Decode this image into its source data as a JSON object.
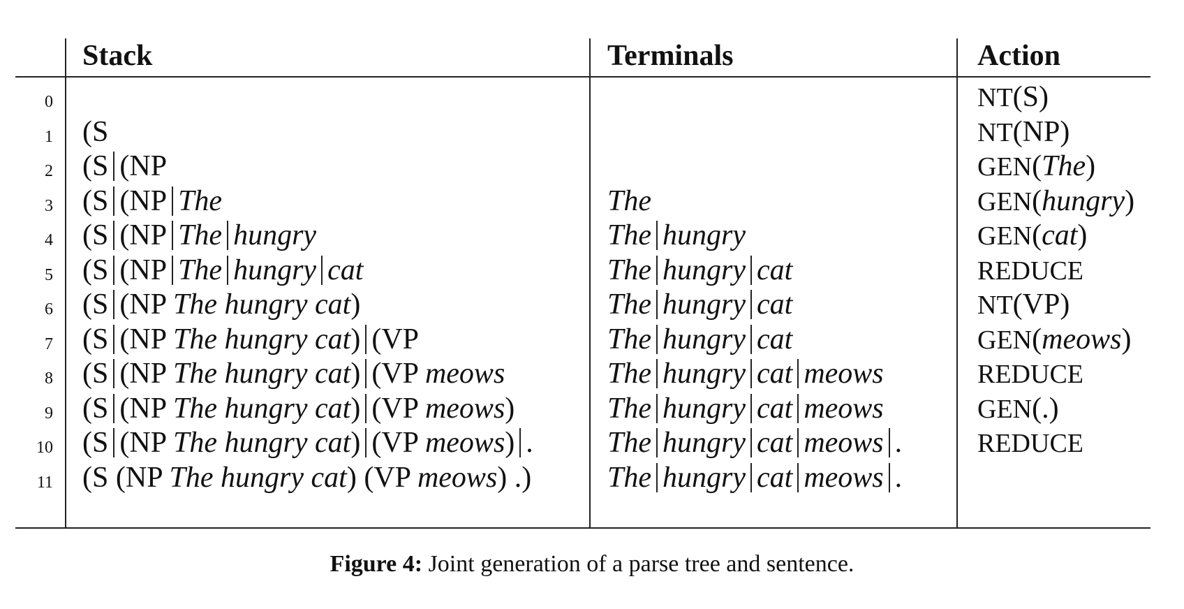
{
  "headers": {
    "stack": "Stack",
    "terminals": "Terminals",
    "action": "Action"
  },
  "caption": {
    "label": "Figure 4:",
    "text": "Joint generation of a parse tree and sentence."
  },
  "rows": [
    {
      "index": "0",
      "stack": [],
      "terminals": [],
      "action": {
        "op": "NT",
        "arg": "S"
      }
    },
    {
      "index": "1",
      "stack": [
        "(S"
      ],
      "terminals": [],
      "action": {
        "op": "NT",
        "arg": "NP"
      }
    },
    {
      "index": "2",
      "stack": [
        "(S",
        "(NP"
      ],
      "terminals": [],
      "action": {
        "op": "GEN",
        "arg": "The"
      }
    },
    {
      "index": "3",
      "stack": [
        "(S",
        "(NP",
        "The"
      ],
      "terminals": [
        "The"
      ],
      "action": {
        "op": "GEN",
        "arg": "hungry"
      }
    },
    {
      "index": "4",
      "stack": [
        "(S",
        "(NP",
        "The",
        "hungry"
      ],
      "terminals": [
        "The",
        "hungry"
      ],
      "action": {
        "op": "GEN",
        "arg": "cat"
      }
    },
    {
      "index": "5",
      "stack": [
        "(S",
        "(NP",
        "The",
        "hungry",
        "cat"
      ],
      "terminals": [
        "The",
        "hungry",
        "cat"
      ],
      "action": {
        "op": "REDUCE",
        "arg": ""
      }
    },
    {
      "index": "6",
      "stack": [
        "(S",
        "(NP The hungry cat)"
      ],
      "terminals": [
        "The",
        "hungry",
        "cat"
      ],
      "action": {
        "op": "NT",
        "arg": "VP"
      }
    },
    {
      "index": "7",
      "stack": [
        "(S",
        "(NP The hungry cat)",
        "(VP"
      ],
      "terminals": [
        "The",
        "hungry",
        "cat"
      ],
      "action": {
        "op": "GEN",
        "arg": "meows"
      }
    },
    {
      "index": "8",
      "stack": [
        "(S",
        "(NP The hungry cat)",
        "(VP meows"
      ],
      "terminals": [
        "The",
        "hungry",
        "cat",
        "meows"
      ],
      "action": {
        "op": "REDUCE",
        "arg": ""
      }
    },
    {
      "index": "9",
      "stack": [
        "(S",
        "(NP The hungry cat)",
        "(VP meows)"
      ],
      "terminals": [
        "The",
        "hungry",
        "cat",
        "meows"
      ],
      "action": {
        "op": "GEN",
        "arg": "."
      }
    },
    {
      "index": "10",
      "stack": [
        "(S",
        "(NP The hungry cat)",
        "(VP meows)",
        "."
      ],
      "terminals": [
        "The",
        "hungry",
        "cat",
        "meows",
        "."
      ],
      "action": {
        "op": "REDUCE",
        "arg": ""
      }
    },
    {
      "index": "11",
      "stack": [
        "(S (NP The hungry cat) (VP meows) .)"
      ],
      "terminals": [
        "The",
        "hungry",
        "cat",
        "meows",
        "."
      ],
      "action": {
        "op": "",
        "arg": ""
      }
    }
  ]
}
